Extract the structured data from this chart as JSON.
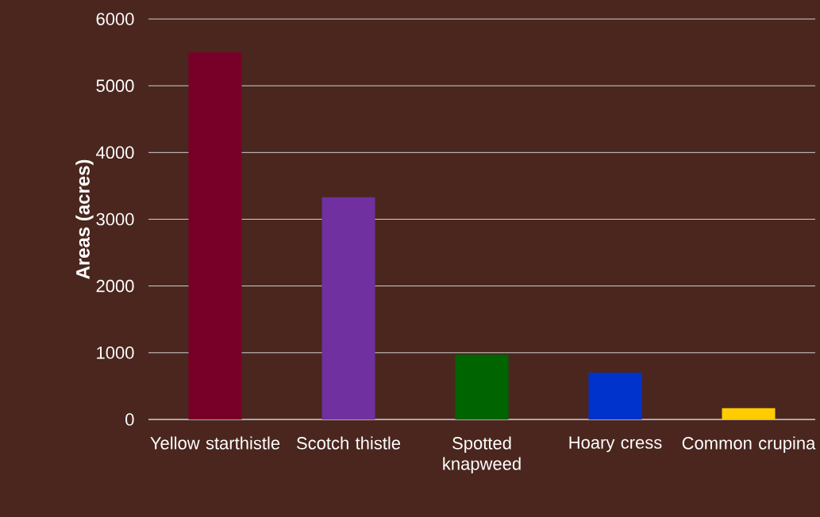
{
  "chart_data": {
    "type": "bar",
    "ylabel": "Areas (acres)",
    "categories": [
      "Yellow starthistle",
      "Scotch thistle",
      "Spotted knapweed",
      "Hoary cress",
      "Common crupina"
    ],
    "values": [
      5500,
      3330,
      970,
      700,
      170
    ],
    "colors": [
      "#780028",
      "#7030a0",
      "#006400",
      "#0033cc",
      "#ffcc00"
    ],
    "ylim": [
      0,
      6000
    ],
    "yticks": [
      0,
      1000,
      2000,
      3000,
      4000,
      5000,
      6000
    ],
    "grid": "y"
  }
}
